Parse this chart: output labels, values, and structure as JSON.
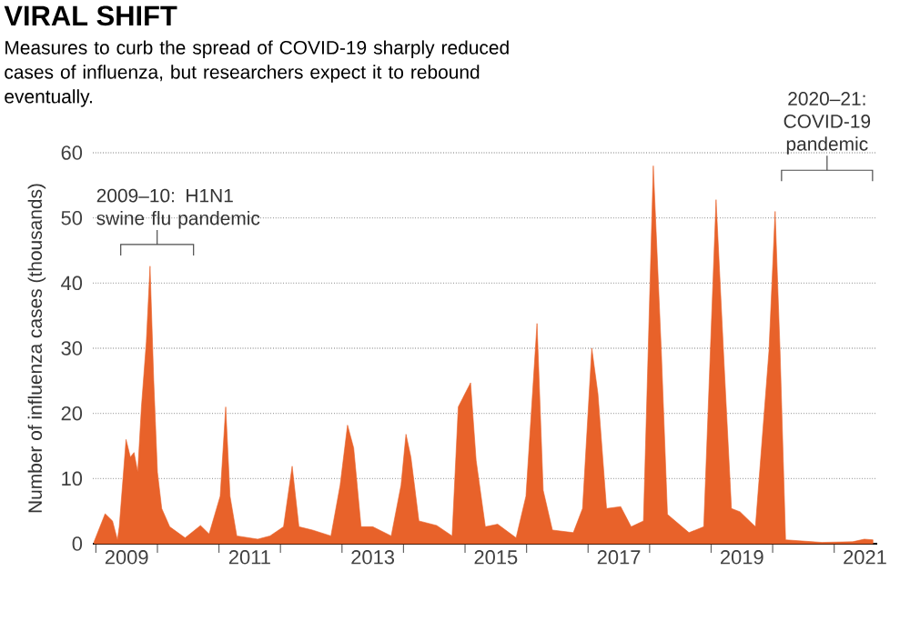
{
  "chart_data": {
    "type": "area",
    "title": "VIRAL SHIFT",
    "subtitle": "Measures to curb the spread of COVID-19 sharply reduced cases of influenza, but researchers expect it to rebound eventually.",
    "ylabel": "Number of influenza cases (thousands)",
    "annotations": [
      "2009–10: H1N1 swine flu pandemic",
      "2020–21: COVID-19 pandemic"
    ],
    "x": [
      2008.97,
      2009.15,
      2009.27,
      2009.35,
      2009.38,
      2009.49,
      2009.56,
      2009.62,
      2009.68,
      2009.74,
      2009.82,
      2009.88,
      2009.94,
      2010.0,
      2010.07,
      2010.2,
      2010.45,
      2010.7,
      2010.84,
      2011.02,
      2011.11,
      2011.18,
      2011.29,
      2011.63,
      2011.83,
      2012.05,
      2012.19,
      2012.3,
      2012.52,
      2012.82,
      2012.97,
      2013.09,
      2013.19,
      2013.31,
      2013.5,
      2013.8,
      2013.96,
      2014.04,
      2014.12,
      2014.25,
      2014.54,
      2014.79,
      2014.89,
      2015.09,
      2015.18,
      2015.33,
      2015.53,
      2015.83,
      2015.99,
      2016.17,
      2016.27,
      2016.42,
      2016.76,
      2016.91,
      2017.06,
      2017.16,
      2017.3,
      2017.53,
      2017.7,
      2017.9,
      2018.06,
      2018.19,
      2018.29,
      2018.64,
      2018.88,
      2019.08,
      2019.21,
      2019.33,
      2019.47,
      2019.72,
      2019.94,
      2020.04,
      2020.12,
      2020.21,
      2020.8,
      2021.3,
      2021.49,
      2021.63
    ],
    "series": [
      {
        "color": "#e8622a",
        "values": [
          0.3,
          4.6,
          3.5,
          0.6,
          2.6,
          16,
          13.3,
          14,
          11,
          21,
          31,
          42.6,
          25,
          11,
          5.4,
          2.6,
          0.9,
          2.8,
          1.5,
          7.3,
          21,
          7.3,
          1.2,
          0.7,
          1.2,
          2.6,
          11.9,
          2.6,
          2.1,
          1.2,
          9,
          18.2,
          14.7,
          2.6,
          2.6,
          1.2,
          9,
          16.8,
          13.3,
          3.5,
          2.8,
          1.2,
          21,
          24.7,
          12.8,
          2.6,
          3,
          0.9,
          7.3,
          33.8,
          8.2,
          2.1,
          1.7,
          5.4,
          30,
          23,
          5.4,
          5.7,
          2.6,
          3.5,
          58,
          29.6,
          4.5,
          1.7,
          2.6,
          52.8,
          27.7,
          5.4,
          4.9,
          2.6,
          29.6,
          51,
          29.6,
          0.6,
          0.2,
          0.3,
          0.7,
          0.6
        ]
      }
    ],
    "xlim": [
      2008.95,
      2021.7
    ],
    "ylim": [
      0,
      60
    ],
    "xticks": [
      {
        "value": 2009,
        "label": null
      },
      {
        "value": 2010,
        "label": null
      },
      {
        "value": 2011,
        "label": null
      },
      {
        "value": 2012,
        "label": null
      },
      {
        "value": 2013,
        "label": null
      },
      {
        "value": 2014,
        "label": null
      },
      {
        "value": 2015,
        "label": null
      },
      {
        "value": 2016,
        "label": null
      },
      {
        "value": 2017,
        "label": null
      },
      {
        "value": 2018,
        "label": null
      },
      {
        "value": 2019,
        "label": null
      },
      {
        "value": 2020,
        "label": null
      },
      {
        "value": 2021,
        "label": null
      },
      {
        "value": 2009.5,
        "label": "2009"
      },
      {
        "value": 2011.5,
        "label": "2011"
      },
      {
        "value": 2013.5,
        "label": "2013"
      },
      {
        "value": 2015.5,
        "label": "2015"
      },
      {
        "value": 2017.5,
        "label": "2017"
      },
      {
        "value": 2019.5,
        "label": "2019"
      },
      {
        "value": 2021.5,
        "label": "2021"
      }
    ],
    "yticks": [
      0,
      10,
      20,
      30,
      40,
      50,
      60
    ],
    "grid": "y"
  }
}
